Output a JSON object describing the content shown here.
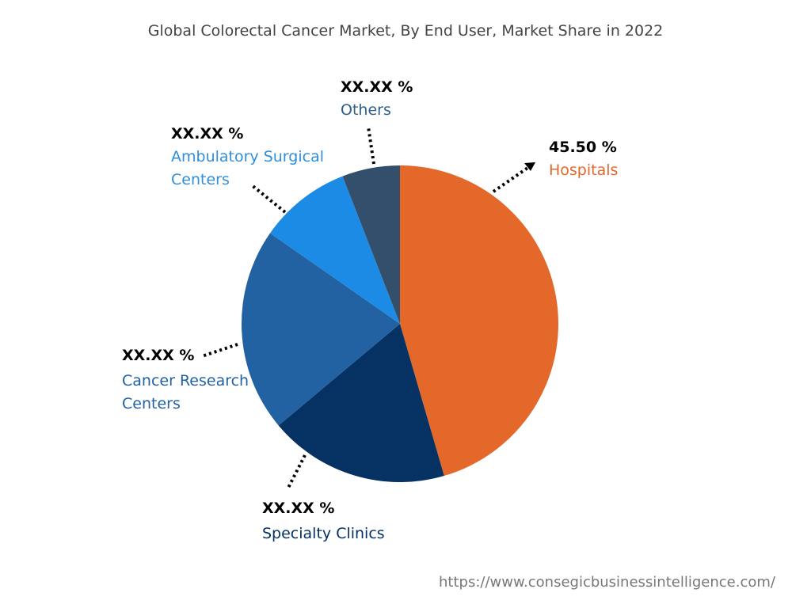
{
  "chart_data": {
    "type": "pie",
    "title": "Global Colorectal Cancer Market, By End User, Market Share in 2022",
    "slices": [
      {
        "name": "Hospitals",
        "value": 45.5,
        "label": "45.50 %",
        "color": "#E3682A"
      },
      {
        "name": "Specialty Clinics",
        "value": 18.4,
        "label": "XX.XX %",
        "color": "#053263"
      },
      {
        "name": "Cancer Research Centers",
        "value": 20.8,
        "label": "XX.XX %",
        "color": "#2262A3"
      },
      {
        "name": "Ambulatory Surgical Centers",
        "value": 9.4,
        "label": "XX.XX %",
        "color": "#1C8BE5"
      },
      {
        "name": "Others",
        "value": 5.9,
        "label": "XX.XX %",
        "color": "#334F6C"
      }
    ],
    "start_angle": "12 o'clock",
    "direction": "clockwise"
  },
  "footer": {
    "url": "https://www.consegicbusinessintelligence.com/"
  }
}
